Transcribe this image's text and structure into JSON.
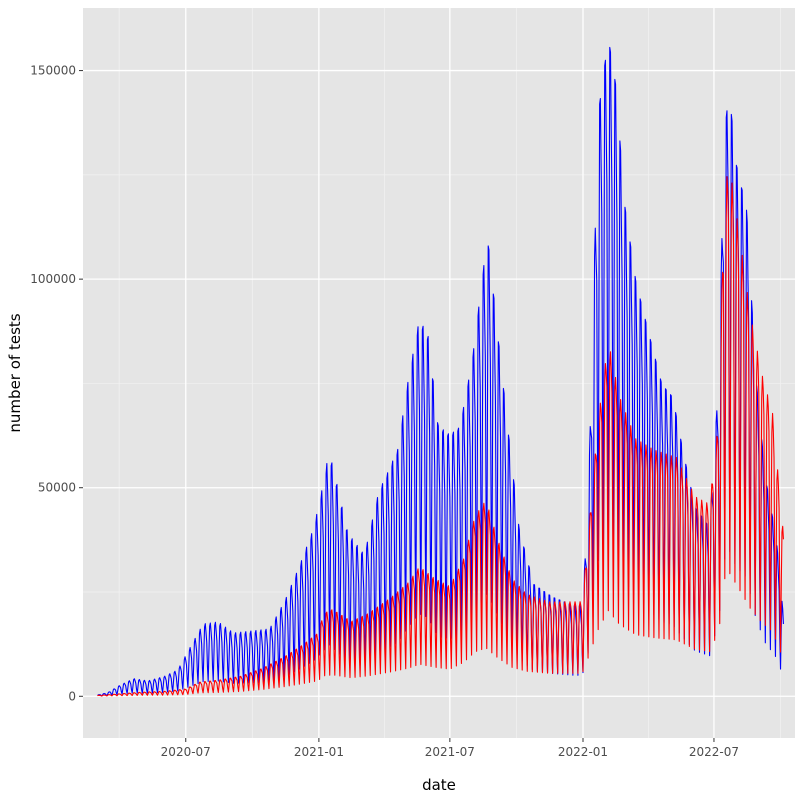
{
  "chart_data": {
    "type": "line",
    "title": "",
    "xlabel": "date",
    "ylabel": "number of tests",
    "xlim": [
      "2020-02-10",
      "2022-10-21"
    ],
    "ylim": [
      -10000,
      165000
    ],
    "x_ticks": [
      {
        "value": "2020-07-01",
        "label": "2020-07"
      },
      {
        "value": "2021-01-01",
        "label": "2021-01"
      },
      {
        "value": "2021-07-01",
        "label": "2021-07"
      },
      {
        "value": "2022-01-01",
        "label": "2022-01"
      },
      {
        "value": "2022-07-01",
        "label": "2022-07"
      }
    ],
    "y_ticks": [
      0,
      50000,
      100000,
      150000
    ],
    "y_tick_labels": [
      "0",
      "50000",
      "100000",
      "150000"
    ],
    "grid": true,
    "background": "#e5e5e5",
    "weekly_cycle": true,
    "series": [
      {
        "color": "#0000ff",
        "points": [
          [
            "2020-03-01",
            300
          ],
          [
            "2020-03-15",
            800
          ],
          [
            "2020-04-01",
            2500
          ],
          [
            "2020-04-20",
            4000
          ],
          [
            "2020-05-10",
            3500
          ],
          [
            "2020-06-01",
            4500
          ],
          [
            "2020-06-20",
            6000
          ],
          [
            "2020-07-10",
            12000
          ],
          [
            "2020-07-25",
            16500
          ],
          [
            "2020-08-15",
            17000
          ],
          [
            "2020-09-05",
            14500
          ],
          [
            "2020-10-01",
            15000
          ],
          [
            "2020-10-25",
            15500
          ],
          [
            "2020-11-15",
            22000
          ],
          [
            "2020-12-05",
            30000
          ],
          [
            "2020-12-25",
            39000
          ],
          [
            "2021-01-08",
            50000
          ],
          [
            "2021-01-15",
            57000
          ],
          [
            "2021-01-25",
            50000
          ],
          [
            "2021-02-10",
            38000
          ],
          [
            "2021-03-05",
            33000
          ],
          [
            "2021-03-25",
            48000
          ],
          [
            "2021-04-05",
            52000
          ],
          [
            "2021-04-20",
            58000
          ],
          [
            "2021-05-05",
            75000
          ],
          [
            "2021-05-20",
            89000
          ],
          [
            "2021-06-01",
            85000
          ],
          [
            "2021-06-15",
            64000
          ],
          [
            "2021-07-01",
            62000
          ],
          [
            "2021-07-15",
            64000
          ],
          [
            "2021-08-01",
            80000
          ],
          [
            "2021-08-15",
            100000
          ],
          [
            "2021-08-22",
            110000
          ],
          [
            "2021-09-05",
            87000
          ],
          [
            "2021-09-20",
            63000
          ],
          [
            "2021-10-05",
            40000
          ],
          [
            "2021-10-25",
            27000
          ],
          [
            "2021-11-20",
            24000
          ],
          [
            "2021-12-20",
            22000
          ],
          [
            "2021-12-31",
            22000
          ],
          [
            "2022-01-08",
            45000
          ],
          [
            "2022-01-22",
            142000
          ],
          [
            "2022-02-05",
            161000
          ],
          [
            "2022-02-15",
            150000
          ],
          [
            "2022-02-28",
            120000
          ],
          [
            "2022-03-15",
            102000
          ],
          [
            "2022-04-01",
            90000
          ],
          [
            "2022-04-20",
            77000
          ],
          [
            "2022-05-05",
            74000
          ],
          [
            "2022-05-20",
            60000
          ],
          [
            "2022-06-05",
            47000
          ],
          [
            "2022-06-25",
            42000
          ],
          [
            "2022-07-08",
            80000
          ],
          [
            "2022-07-15",
            140000
          ],
          [
            "2022-07-22",
            151000
          ],
          [
            "2022-08-01",
            133000
          ],
          [
            "2022-08-15",
            122000
          ],
          [
            "2022-08-28",
            80000
          ],
          [
            "2022-09-10",
            55000
          ],
          [
            "2022-09-25",
            40000
          ],
          [
            "2022-10-05",
            20000
          ]
        ]
      },
      {
        "color": "#ff0000",
        "points": [
          [
            "2020-03-01",
            200
          ],
          [
            "2020-04-01",
            600
          ],
          [
            "2020-05-01",
            1000
          ],
          [
            "2020-06-01",
            1200
          ],
          [
            "2020-07-01",
            1800
          ],
          [
            "2020-07-20",
            3500
          ],
          [
            "2020-08-15",
            4000
          ],
          [
            "2020-09-15",
            5000
          ],
          [
            "2020-10-15",
            7000
          ],
          [
            "2020-11-15",
            10000
          ],
          [
            "2020-12-10",
            13000
          ],
          [
            "2020-12-31",
            16000
          ],
          [
            "2021-01-08",
            21000
          ],
          [
            "2021-01-20",
            22000
          ],
          [
            "2021-02-15",
            19000
          ],
          [
            "2021-03-10",
            21000
          ],
          [
            "2021-04-10",
            25000
          ],
          [
            "2021-05-05",
            29000
          ],
          [
            "2021-05-20",
            33000
          ],
          [
            "2021-06-10",
            30000
          ],
          [
            "2021-07-01",
            28000
          ],
          [
            "2021-07-20",
            35000
          ],
          [
            "2021-08-05",
            46000
          ],
          [
            "2021-08-20",
            50000
          ],
          [
            "2021-09-05",
            40000
          ],
          [
            "2021-09-25",
            30000
          ],
          [
            "2021-10-15",
            26000
          ],
          [
            "2021-11-15",
            24000
          ],
          [
            "2021-12-20",
            24000
          ],
          [
            "2021-12-31",
            24000
          ],
          [
            "2022-01-08",
            40000
          ],
          [
            "2022-01-22",
            70000
          ],
          [
            "2022-02-05",
            90000
          ],
          [
            "2022-02-20",
            76000
          ],
          [
            "2022-03-15",
            65000
          ],
          [
            "2022-04-10",
            62000
          ],
          [
            "2022-05-10",
            60000
          ],
          [
            "2022-06-05",
            50000
          ],
          [
            "2022-06-25",
            48000
          ],
          [
            "2022-07-08",
            70000
          ],
          [
            "2022-07-15",
            125000
          ],
          [
            "2022-07-22",
            133000
          ],
          [
            "2022-08-05",
            115000
          ],
          [
            "2022-08-20",
            95000
          ],
          [
            "2022-09-05",
            80000
          ],
          [
            "2022-09-20",
            70000
          ],
          [
            "2022-10-05",
            40000
          ]
        ]
      }
    ]
  }
}
